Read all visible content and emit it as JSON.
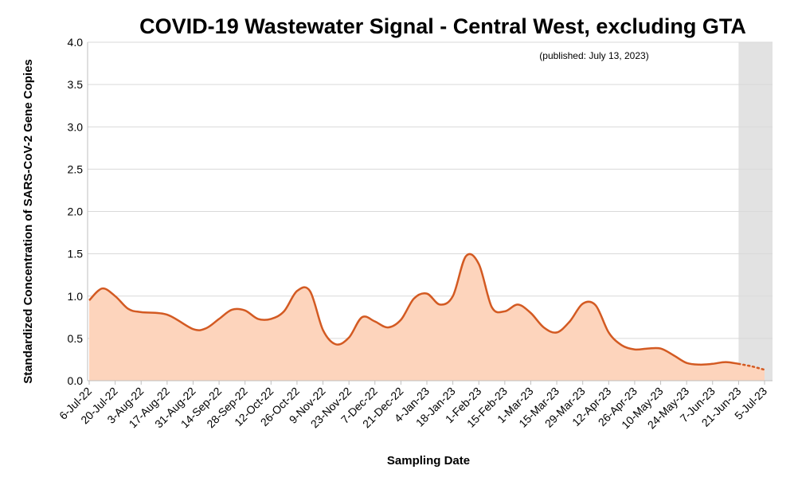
{
  "chart_data": {
    "type": "area",
    "title": "COVID-19 Wastewater Signal - Central West, excluding GTA",
    "subtitle": "(published: July 13, 2023)",
    "xlabel": "Sampling Date",
    "ylabel": "Standardized Concentration of SARS-CoV-2 Gene Copies",
    "ylim": [
      0,
      4.0
    ],
    "yticks": [
      "0.0",
      "0.5",
      "1.0",
      "1.5",
      "2.0",
      "2.5",
      "3.0",
      "3.5",
      "4.0"
    ],
    "categories": [
      "6-Jul-22",
      "20-Jul-22",
      "3-Aug-22",
      "17-Aug-22",
      "31-Aug-22",
      "14-Sep-22",
      "28-Sep-22",
      "12-Oct-22",
      "26-Oct-22",
      "9-Nov-22",
      "23-Nov-22",
      "7-Dec-22",
      "21-Dec-22",
      "4-Jan-23",
      "18-Jan-23",
      "1-Feb-23",
      "15-Feb-23",
      "1-Mar-23",
      "15-Mar-23",
      "29-Mar-23",
      "12-Apr-23",
      "26-Apr-23",
      "10-May-23",
      "24-May-23",
      "7-Jun-23",
      "21-Jun-23",
      "5-Jul-23"
    ],
    "grid": true,
    "shaded_region": {
      "from": "21-Jun-23",
      "to": "5-Jul-23",
      "color": "#e2e2e2"
    },
    "series": [
      {
        "line_color": "#d35a22",
        "fill_color": "#fdd4bc",
        "points": [
          {
            "x": "2022-07-06",
            "y": 0.95
          },
          {
            "x": "2022-07-13",
            "y": 1.09
          },
          {
            "x": "2022-07-20",
            "y": 1.0
          },
          {
            "x": "2022-07-27",
            "y": 0.85
          },
          {
            "x": "2022-08-03",
            "y": 0.81
          },
          {
            "x": "2022-08-17",
            "y": 0.78
          },
          {
            "x": "2022-08-31",
            "y": 0.61
          },
          {
            "x": "2022-09-07",
            "y": 0.62
          },
          {
            "x": "2022-09-14",
            "y": 0.73
          },
          {
            "x": "2022-09-21",
            "y": 0.84
          },
          {
            "x": "2022-09-28",
            "y": 0.83
          },
          {
            "x": "2022-10-05",
            "y": 0.73
          },
          {
            "x": "2022-10-12",
            "y": 0.73
          },
          {
            "x": "2022-10-19",
            "y": 0.82
          },
          {
            "x": "2022-10-26",
            "y": 1.06
          },
          {
            "x": "2022-11-02",
            "y": 1.06
          },
          {
            "x": "2022-11-09",
            "y": 0.6
          },
          {
            "x": "2022-11-16",
            "y": 0.43
          },
          {
            "x": "2022-11-23",
            "y": 0.51
          },
          {
            "x": "2022-11-30",
            "y": 0.75
          },
          {
            "x": "2022-12-07",
            "y": 0.7
          },
          {
            "x": "2022-12-14",
            "y": 0.63
          },
          {
            "x": "2022-12-21",
            "y": 0.72
          },
          {
            "x": "2022-12-28",
            "y": 0.97
          },
          {
            "x": "2023-01-04",
            "y": 1.03
          },
          {
            "x": "2023-01-11",
            "y": 0.9
          },
          {
            "x": "2023-01-18",
            "y": 1.0
          },
          {
            "x": "2023-01-25",
            "y": 1.47
          },
          {
            "x": "2023-02-01",
            "y": 1.38
          },
          {
            "x": "2023-02-08",
            "y": 0.87
          },
          {
            "x": "2023-02-15",
            "y": 0.82
          },
          {
            "x": "2023-02-22",
            "y": 0.9
          },
          {
            "x": "2023-03-01",
            "y": 0.8
          },
          {
            "x": "2023-03-08",
            "y": 0.63
          },
          {
            "x": "2023-03-15",
            "y": 0.57
          },
          {
            "x": "2023-03-22",
            "y": 0.7
          },
          {
            "x": "2023-03-29",
            "y": 0.91
          },
          {
            "x": "2023-04-05",
            "y": 0.89
          },
          {
            "x": "2023-04-12",
            "y": 0.57
          },
          {
            "x": "2023-04-19",
            "y": 0.42
          },
          {
            "x": "2023-04-26",
            "y": 0.37
          },
          {
            "x": "2023-05-03",
            "y": 0.38
          },
          {
            "x": "2023-05-10",
            "y": 0.38
          },
          {
            "x": "2023-05-17",
            "y": 0.3
          },
          {
            "x": "2023-05-24",
            "y": 0.21
          },
          {
            "x": "2023-05-31",
            "y": 0.19
          },
          {
            "x": "2023-06-07",
            "y": 0.2
          },
          {
            "x": "2023-06-14",
            "y": 0.22
          },
          {
            "x": "2023-06-21",
            "y": 0.2
          }
        ],
        "projected_points": [
          {
            "x": "2023-06-21",
            "y": 0.2
          },
          {
            "x": "2023-06-28",
            "y": 0.17
          },
          {
            "x": "2023-07-05",
            "y": 0.13
          }
        ]
      }
    ]
  }
}
